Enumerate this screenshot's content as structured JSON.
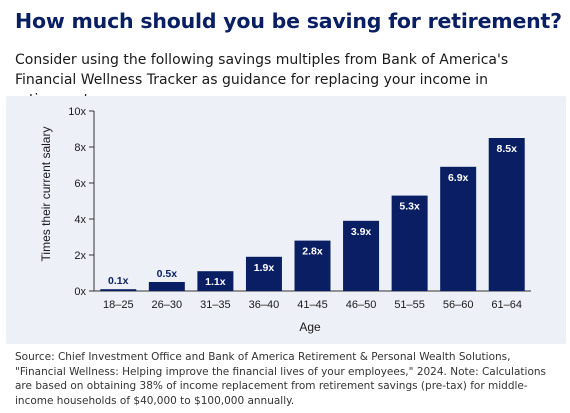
{
  "header": {
    "title": "How much should you be saving for retirement?",
    "subtitle": "Consider using the following savings multiples from Bank of America's Financial Wellness Tracker as guidance for replacing your income in retirement:"
  },
  "chart_data": {
    "type": "bar",
    "categories": [
      "18–25",
      "26–30",
      "31–35",
      "36–40",
      "41–45",
      "46–50",
      "51–55",
      "56–60",
      "61–64"
    ],
    "values": [
      0.1,
      0.5,
      1.1,
      1.9,
      2.8,
      3.9,
      5.3,
      6.9,
      8.5
    ],
    "value_labels": [
      "0.1x",
      "0.5x",
      "1.1x",
      "1.9x",
      "2.8x",
      "3.9x",
      "5.3x",
      "6.9x",
      "8.5x"
    ],
    "xlabel": "Age",
    "ylabel": "Times their current salary",
    "ylim": [
      0,
      10
    ],
    "yticks": [
      0,
      2,
      4,
      6,
      8,
      10
    ],
    "ytick_labels": [
      "0x",
      "2x",
      "4x",
      "6x",
      "8x",
      "10x"
    ],
    "grid": false,
    "colors": {
      "bar": "#0a1f63",
      "label_light": "#ffffff",
      "label_dark": "#0a1f63",
      "axis": "#333333",
      "background": "#eef0f7"
    }
  },
  "footer": {
    "source": "Source: Chief Investment Office and Bank of America Retirement & Personal Wealth Solutions, \"Financial Wellness: Helping improve the financial lives of your employees,\" 2024. Note: Calculations are based on obtaining 38% of income replacement from retirement savings (pre-tax) for middle-income households of $40,000 to $100,000 annually."
  }
}
